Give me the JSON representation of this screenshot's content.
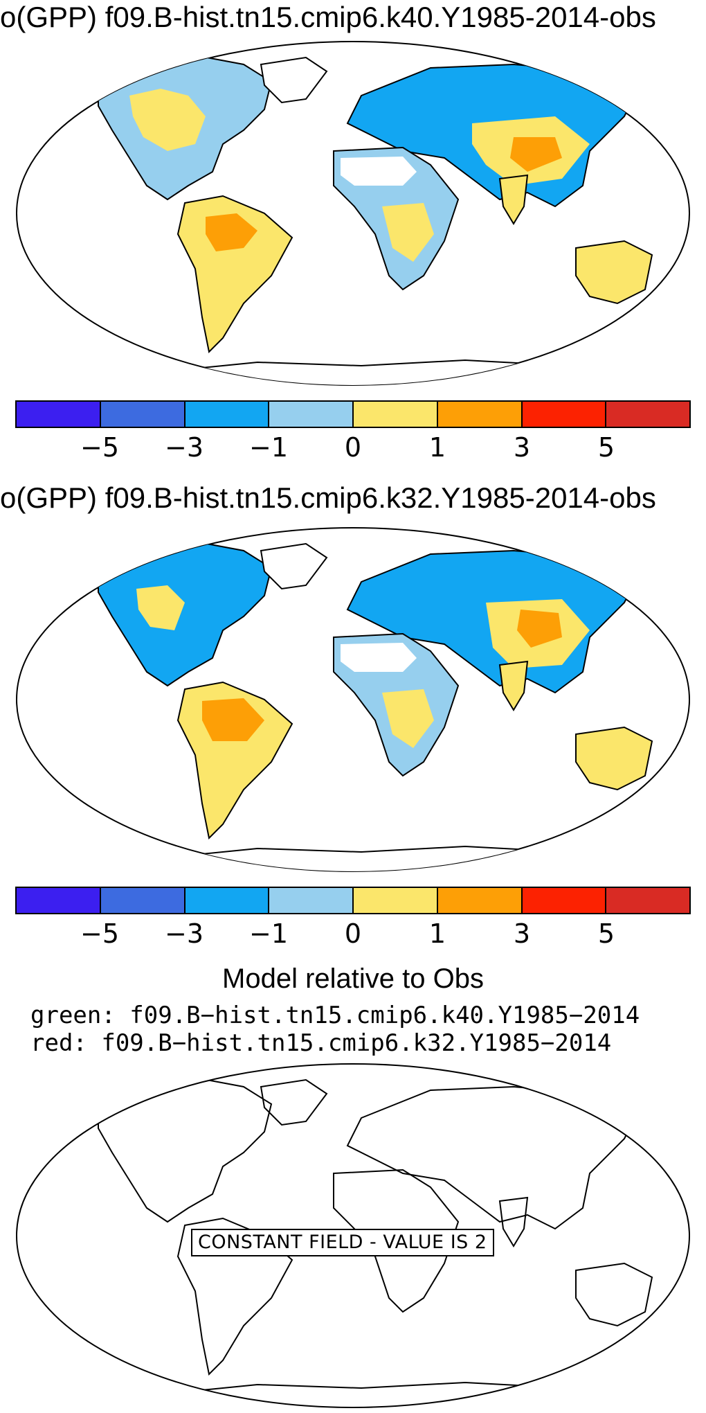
{
  "panels": [
    {
      "title": "o(GPP) f09.B-hist.tn15.cmip6.k40.Y1985-2014-obs",
      "colorbar": {
        "colors": [
          "#3c1ff0",
          "#3d6be0",
          "#12a6f2",
          "#96cfee",
          "#fbe66b",
          "#fd9f06",
          "#fc2201",
          "#d92b24"
        ],
        "tick_labels": [
          "−5",
          "−3",
          "−1",
          "0",
          "1",
          "3",
          "5"
        ]
      }
    },
    {
      "title": "o(GPP) f09.B-hist.tn15.cmip6.k32.Y1985-2014-obs",
      "colorbar": {
        "colors": [
          "#3c1ff0",
          "#3d6be0",
          "#12a6f2",
          "#96cfee",
          "#fbe66b",
          "#fd9f06",
          "#fc2201",
          "#d92b24"
        ],
        "tick_labels": [
          "−5",
          "−3",
          "−1",
          "0",
          "1",
          "3",
          "5"
        ]
      }
    }
  ],
  "comparison": {
    "title": "Model relative to Obs",
    "green_label": "green: f09.B−hist.tn15.cmip6.k40.Y1985−2014",
    "red_label": "red: f09.B−hist.tn15.cmip6.k32.Y1985−2014",
    "constant_field_label": "CONSTANT FIELD - VALUE IS 2"
  },
  "map_colors": {
    "outline": "#000000",
    "ocean": "#ffffff",
    "negative_strong": "#12a6f2",
    "negative_weak": "#96cfee",
    "positive_weak": "#fbe66b",
    "positive_strong": "#fd9f06"
  }
}
